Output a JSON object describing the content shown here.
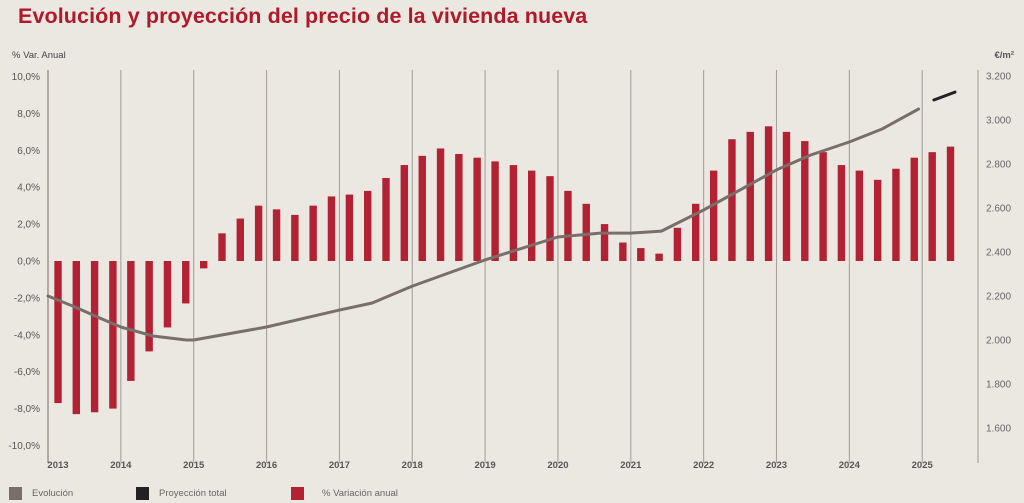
{
  "title": "Evolución y proyección del precio de la vivienda nueva",
  "chart_data": {
    "type": "bar+line",
    "title": "Evolución y proyección del precio de la vivienda nueva",
    "left_axis": {
      "label": "% Var. Anual",
      "range": [
        -10,
        10
      ],
      "ticks": [
        "10,0%",
        "8,0%",
        "6,0%",
        "4,0%",
        "2,0%",
        "0,0%",
        "-2,0%",
        "-4,0%",
        "-6,0%",
        "-8,0%",
        "-10,0%"
      ],
      "tick_values": [
        10,
        8,
        6,
        4,
        2,
        0,
        -2,
        -4,
        -6,
        -8,
        -10
      ]
    },
    "right_axis": {
      "label": "€/m²",
      "range": [
        1600,
        3200
      ],
      "ticks": [
        "3.200",
        "3.000",
        "2.800",
        "2.600",
        "2.400",
        "2.200",
        "2.000",
        "1.800",
        "1.600"
      ],
      "tick_values": [
        3200,
        3000,
        2800,
        2600,
        2400,
        2200,
        2000,
        1800,
        1600
      ]
    },
    "x_axis": {
      "range": [
        2013,
        2025.75
      ],
      "tick_labels": [
        "2013",
        "2014",
        "2015",
        "2016",
        "2017",
        "2018",
        "2019",
        "2020",
        "2021",
        "2022",
        "2023",
        "2024",
        "2025"
      ],
      "tick_values": [
        2013,
        2014,
        2015,
        2016,
        2017,
        2018,
        2019,
        2020,
        2021,
        2022,
        2023,
        2024,
        2025
      ]
    },
    "grid": "vertical-year-lines",
    "legend_position": "bottom",
    "series": [
      {
        "name": "Evolución",
        "type": "line",
        "axis": "right",
        "color": "#7a6e6b",
        "points": [
          [
            2013.0,
            2200
          ],
          [
            2013.37,
            2150
          ],
          [
            2013.71,
            2100
          ],
          [
            2014.0,
            2059
          ],
          [
            2014.44,
            2018
          ],
          [
            2014.9,
            2000
          ],
          [
            2015.0,
            2000
          ],
          [
            2016.0,
            2059
          ],
          [
            2017.0,
            2136
          ],
          [
            2017.45,
            2168
          ],
          [
            2018.0,
            2245
          ],
          [
            2019.0,
            2364
          ],
          [
            2020.0,
            2468
          ],
          [
            2020.58,
            2486
          ],
          [
            2021.0,
            2486
          ],
          [
            2021.42,
            2495
          ],
          [
            2022.0,
            2591
          ],
          [
            2023.0,
            2773
          ],
          [
            2023.47,
            2841
          ],
          [
            2024.0,
            2900
          ],
          [
            2024.45,
            2959
          ],
          [
            2024.95,
            3050
          ]
        ]
      },
      {
        "name": "Proyección total",
        "type": "line",
        "axis": "right",
        "color": "#222222",
        "points": [
          [
            2025.16,
            3091
          ],
          [
            2025.45,
            3127
          ]
        ]
      },
      {
        "name": "% Variación anual",
        "type": "bar",
        "axis": "left",
        "color": "#b22232",
        "categories": [
          "2013T1",
          "2013T2",
          "2013T3",
          "2013T4",
          "2014T1",
          "2014T2",
          "2014T3",
          "2014T4",
          "2015T1",
          "2015T2",
          "2015T3",
          "2015T4",
          "2016T1",
          "2016T2",
          "2016T3",
          "2016T4",
          "2017T1",
          "2017T2",
          "2017T3",
          "2017T4",
          "2018T1",
          "2018T2",
          "2018T3",
          "2018T4",
          "2019T1",
          "2019T2",
          "2019T3",
          "2019T4",
          "2020T1",
          "2020T2",
          "2020T3",
          "2020T4",
          "2021T1",
          "2021T2",
          "2021T3",
          "2021T4",
          "2022T1",
          "2022T2",
          "2022T3",
          "2022T4",
          "2023T1",
          "2023T2",
          "2023T3",
          "2023T4",
          "2024T1",
          "2024T2",
          "2024T3",
          "2024T4",
          "2025T1",
          "2025T2"
        ],
        "values": [
          -7.7,
          -8.3,
          -8.2,
          -8.0,
          -6.5,
          -4.9,
          -3.6,
          -2.3,
          -0.4,
          1.5,
          2.3,
          3.0,
          2.8,
          2.5,
          3.0,
          3.5,
          3.6,
          3.8,
          4.5,
          5.2,
          5.7,
          6.1,
          5.8,
          5.6,
          5.4,
          5.2,
          4.9,
          4.6,
          3.8,
          3.1,
          2.0,
          1.0,
          0.7,
          0.4,
          1.8,
          3.1,
          4.9,
          6.6,
          7.0,
          7.3,
          7.0,
          6.5,
          5.9,
          5.2,
          4.9,
          4.4,
          5.0,
          5.6,
          5.9,
          6.2
        ]
      }
    ]
  },
  "legend": [
    {
      "label": "Evolución",
      "color": "#7a6e6b"
    },
    {
      "label": "Proyección total",
      "color": "#222222"
    },
    {
      "label": "% Variación anual",
      "color": "#b22232"
    }
  ]
}
